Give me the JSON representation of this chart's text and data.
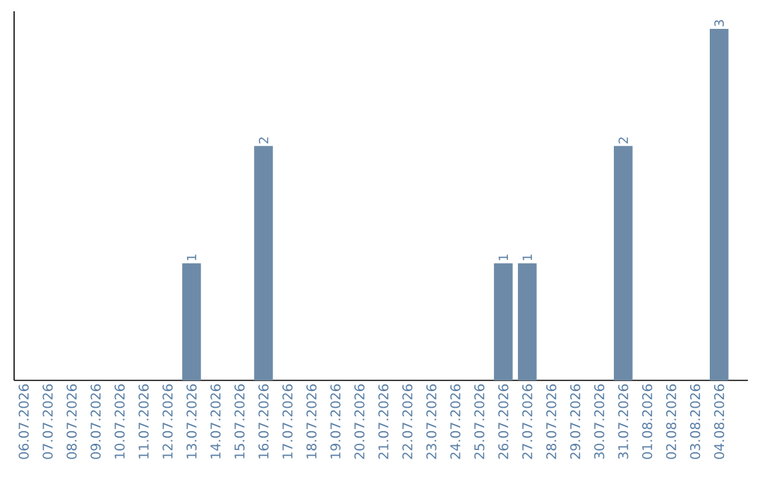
{
  "chart_data": {
    "type": "bar",
    "categories": [
      "06.07.2026",
      "07.07.2026",
      "08.07.2026",
      "09.07.2026",
      "10.07.2026",
      "11.07.2026",
      "12.07.2026",
      "13.07.2026",
      "14.07.2026",
      "15.07.2026",
      "16.07.2026",
      "17.07.2026",
      "18.07.2026",
      "19.07.2026",
      "20.07.2026",
      "21.07.2026",
      "22.07.2026",
      "23.07.2026",
      "24.07.2026",
      "25.07.2026",
      "26.07.2026",
      "27.07.2026",
      "28.07.2026",
      "29.07.2026",
      "30.07.2026",
      "31.07.2026",
      "01.08.2026",
      "02.08.2026",
      "03.08.2026",
      "04.08.2026"
    ],
    "values": [
      0,
      0,
      0,
      0,
      0,
      0,
      0,
      1,
      0,
      0,
      2,
      0,
      0,
      0,
      0,
      0,
      0,
      0,
      0,
      0,
      1,
      1,
      0,
      0,
      0,
      2,
      0,
      0,
      0,
      3
    ],
    "value_labels": [
      null,
      null,
      null,
      null,
      null,
      null,
      null,
      "1",
      null,
      null,
      "2",
      null,
      null,
      null,
      null,
      null,
      null,
      null,
      null,
      null,
      "1",
      "1",
      null,
      null,
      null,
      "2",
      null,
      null,
      null,
      "3"
    ],
    "color": "#6d8ba8",
    "ylim": [
      0,
      3.15
    ],
    "tick_labels": "x"
  }
}
